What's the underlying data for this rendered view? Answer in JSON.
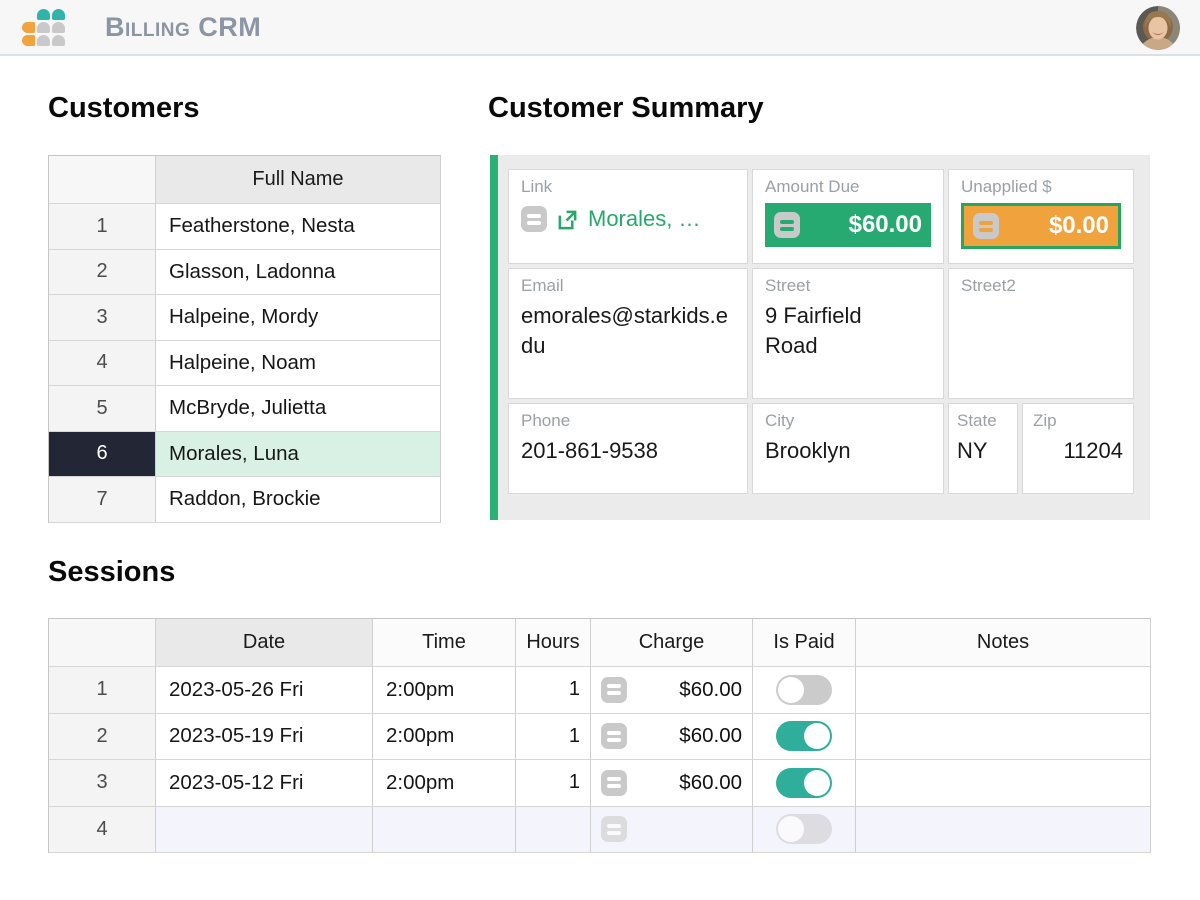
{
  "app": {
    "title": "Billing CRM",
    "logo_icon": "petal-grid-logo",
    "avatar_icon": "user-avatar-photo"
  },
  "colors": {
    "green": "#27aa72",
    "green_border": "#27a661",
    "orange": "#f0a23c",
    "toggle_on_teal": "#2fae9b",
    "selected_row_dark": "#232634",
    "selected_row_mint": "#d9f1e4",
    "accent_bar": "#2bb075",
    "logo_teal": "#2fb3ab",
    "logo_orange": "#f2a33c"
  },
  "icons": {
    "menu": "drag-handle (two horizontal bars)",
    "external_link": "box with arrow up-right"
  },
  "customers": {
    "heading": "Customers",
    "columns": [
      "",
      "Full Name"
    ],
    "rows": [
      {
        "num": "1",
        "name": "Featherstone, Nesta",
        "selected": false
      },
      {
        "num": "2",
        "name": "Glasson, Ladonna",
        "selected": false
      },
      {
        "num": "3",
        "name": "Halpeine, Mordy",
        "selected": false
      },
      {
        "num": "4",
        "name": "Halpeine, Noam",
        "selected": false
      },
      {
        "num": "5",
        "name": "McBryde, Julietta",
        "selected": false
      },
      {
        "num": "6",
        "name": "Morales, Luna",
        "selected": true
      },
      {
        "num": "7",
        "name": "Raddon, Brockie",
        "selected": false
      }
    ]
  },
  "summary": {
    "heading": "Customer Summary",
    "link": {
      "label": "Link",
      "value": "Morales, …"
    },
    "amount_due": {
      "label": "Amount Due",
      "value": "$60.00"
    },
    "unapplied": {
      "label": "Unapplied $",
      "value": "$0.00"
    },
    "email": {
      "label": "Email",
      "value": "emorales@starkids.edu"
    },
    "street": {
      "label": "Street",
      "value": "9 Fairfield Road"
    },
    "street2": {
      "label": "Street2",
      "value": ""
    },
    "phone": {
      "label": "Phone",
      "value": "201-861-9538"
    },
    "city": {
      "label": "City",
      "value": "Brooklyn"
    },
    "state": {
      "label": "State",
      "value": "NY"
    },
    "zip": {
      "label": "Zip",
      "value": "11204"
    }
  },
  "sessions": {
    "heading": "Sessions",
    "columns": [
      "",
      "Date",
      "Time",
      "Hours",
      "Charge",
      "Is Paid",
      "Notes"
    ],
    "rows": [
      {
        "num": "1",
        "date": "2023-05-26 Fri",
        "time": "2:00pm",
        "hours": "1",
        "charge": "$60.00",
        "is_paid": false,
        "notes": "",
        "is_new": false
      },
      {
        "num": "2",
        "date": "2023-05-19 Fri",
        "time": "2:00pm",
        "hours": "1",
        "charge": "$60.00",
        "is_paid": true,
        "notes": "",
        "is_new": false
      },
      {
        "num": "3",
        "date": "2023-05-12 Fri",
        "time": "2:00pm",
        "hours": "1",
        "charge": "$60.00",
        "is_paid": true,
        "notes": "",
        "is_new": false
      },
      {
        "num": "4",
        "date": "",
        "time": "",
        "hours": "",
        "charge": "",
        "is_paid": false,
        "notes": "",
        "is_new": true
      }
    ]
  }
}
